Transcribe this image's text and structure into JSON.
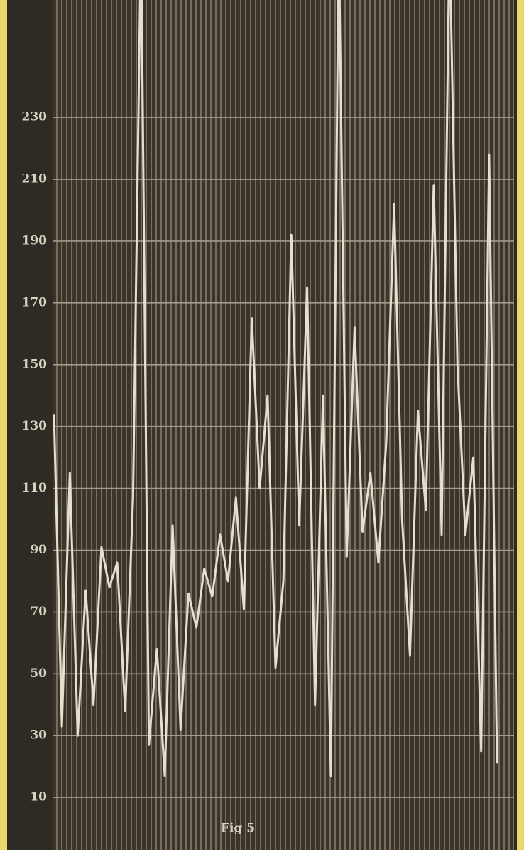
{
  "chart_data": {
    "type": "line",
    "caption": "Fig 5",
    "series": [
      {
        "color": "#e4dfcf",
        "values": [
          134,
          33,
          115,
          30,
          77,
          40,
          91,
          78,
          86,
          38,
          107,
          290,
          27,
          58,
          17,
          98,
          32,
          76,
          65,
          84,
          75,
          95,
          80,
          107,
          71,
          165,
          110,
          140,
          52,
          80,
          192,
          98,
          175,
          40,
          140,
          17,
          290,
          88,
          162,
          96,
          115,
          86,
          125,
          202,
          100,
          56,
          135,
          103,
          208,
          95,
          290,
          150,
          95,
          120,
          25,
          218,
          21
        ]
      }
    ],
    "ylim": [
      -7,
      268
    ],
    "yticks": [
      10,
      30,
      50,
      70,
      90,
      110,
      130,
      150,
      170,
      190,
      210,
      230
    ],
    "grid": true
  }
}
